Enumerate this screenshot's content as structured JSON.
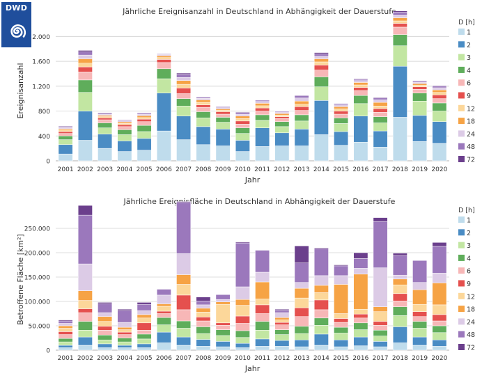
{
  "logo": {
    "text": "DWD",
    "icon": "dwd-spiral-logo"
  },
  "legend": {
    "title": "D [h]",
    "items": [
      "1",
      "2",
      "3",
      "4",
      "6",
      "9",
      "12",
      "18",
      "24",
      "48",
      "72"
    ],
    "colors": [
      "#bfdcec",
      "#4a8cc4",
      "#c2e6a2",
      "#5fad5b",
      "#f7b7b7",
      "#e5504e",
      "#fcd79a",
      "#f6a345",
      "#dccbe6",
      "#9b78bc",
      "#6b3f8c"
    ]
  },
  "chart_data": [
    {
      "type": "bar",
      "stacked": true,
      "title": "Jährliche Ereignisanzahl in Deutschland in Abhängigkeit der Dauerstufe",
      "xlabel": "Jahr",
      "ylabel": "Ereignisanzahl",
      "ylim": [
        0,
        2250
      ],
      "yticks": [
        0,
        400,
        800,
        1200,
        1600,
        2000
      ],
      "ytick_labels": [
        "0",
        "400",
        "800",
        "1.200",
        "1.600",
        "2.000"
      ],
      "grid": true,
      "legend_position": "right",
      "categories": [
        "2001",
        "2002",
        "2003",
        "2004",
        "2005",
        "2006",
        "2007",
        "2008",
        "2009",
        "2010",
        "2011",
        "2012",
        "2013",
        "2014",
        "2015",
        "2016",
        "2017",
        "2018",
        "2019",
        "2020"
      ],
      "series": [
        {
          "name": "1",
          "values": [
            110,
            330,
            200,
            150,
            170,
            480,
            340,
            260,
            240,
            150,
            230,
            240,
            240,
            420,
            250,
            300,
            220,
            700,
            310,
            280
          ]
        },
        {
          "name": "2",
          "values": [
            150,
            470,
            230,
            170,
            190,
            610,
            380,
            290,
            270,
            180,
            300,
            210,
            270,
            550,
            220,
            420,
            260,
            820,
            420,
            350
          ]
        },
        {
          "name": "3",
          "values": [
            80,
            300,
            100,
            100,
            110,
            230,
            160,
            140,
            110,
            110,
            120,
            100,
            130,
            220,
            130,
            200,
            130,
            330,
            230,
            170
          ]
        },
        {
          "name": "4",
          "values": [
            60,
            200,
            80,
            80,
            100,
            160,
            120,
            100,
            80,
            90,
            90,
            80,
            100,
            160,
            90,
            130,
            100,
            180,
            130,
            130
          ]
        },
        {
          "name": "6",
          "values": [
            40,
            130,
            50,
            50,
            60,
            100,
            80,
            70,
            50,
            60,
            60,
            50,
            70,
            110,
            60,
            80,
            70,
            120,
            60,
            70
          ]
        },
        {
          "name": "9",
          "values": [
            30,
            80,
            30,
            30,
            40,
            50,
            90,
            40,
            40,
            50,
            50,
            30,
            60,
            80,
            50,
            50,
            60,
            60,
            40,
            60
          ]
        },
        {
          "name": "12",
          "values": [
            25,
            60,
            20,
            20,
            25,
            30,
            60,
            40,
            25,
            40,
            35,
            25,
            40,
            50,
            35,
            40,
            40,
            40,
            25,
            40
          ]
        },
        {
          "name": "18",
          "values": [
            20,
            70,
            20,
            25,
            30,
            30,
            60,
            40,
            20,
            40,
            40,
            25,
            50,
            50,
            35,
            40,
            60,
            50,
            25,
            40
          ]
        },
        {
          "name": "24",
          "values": [
            20,
            60,
            20,
            20,
            25,
            20,
            50,
            25,
            20,
            30,
            30,
            25,
            50,
            40,
            30,
            30,
            40,
            40,
            25,
            35
          ]
        },
        {
          "name": "48",
          "values": [
            15,
            50,
            15,
            15,
            20,
            10,
            50,
            20,
            15,
            25,
            20,
            15,
            40,
            40,
            20,
            20,
            30,
            50,
            20,
            25
          ]
        },
        {
          "name": "72",
          "values": [
            10,
            25,
            10,
            5,
            5,
            0,
            20,
            5,
            5,
            10,
            5,
            5,
            5,
            20,
            5,
            10,
            10,
            20,
            5,
            10
          ]
        }
      ]
    },
    {
      "type": "bar",
      "stacked": true,
      "title": "Jährliche Ereignisfläche in Deutschland in Abhängigkeit der Dauerstufe",
      "xlabel": "Jahr",
      "ylabel": "Betroffene Fläche [km²]",
      "ylim": [
        0,
        290000
      ],
      "yticks": [
        0,
        50000,
        100000,
        150000,
        200000,
        250000
      ],
      "ytick_labels": [
        "0",
        "50.000",
        "100.000",
        "150.000",
        "200.000",
        "250.000"
      ],
      "grid": true,
      "legend_position": "right",
      "categories": [
        "2001",
        "2002",
        "2003",
        "2004",
        "2005",
        "2006",
        "2007",
        "2008",
        "2009",
        "2010",
        "2011",
        "2012",
        "2013",
        "2014",
        "2015",
        "2016",
        "2017",
        "2018",
        "2019",
        "2020"
      ],
      "series": [
        {
          "name": "1",
          "values": [
            5000,
            10000,
            5000,
            5000,
            5000,
            15000,
            10000,
            8000,
            7000,
            5000,
            8000,
            8000,
            7000,
            10000,
            7000,
            9000,
            7000,
            15000,
            10000,
            8000
          ]
        },
        {
          "name": "2",
          "values": [
            5000,
            17000,
            8000,
            5000,
            8000,
            22000,
            17000,
            14000,
            11000,
            9000,
            15000,
            12000,
            14000,
            23000,
            14000,
            18000,
            11000,
            33000,
            17000,
            13000
          ]
        },
        {
          "name": "3",
          "values": [
            7000,
            14000,
            8000,
            7000,
            10000,
            15000,
            18000,
            12000,
            12000,
            12000,
            18000,
            12000,
            13000,
            18000,
            14000,
            15000,
            11000,
            23000,
            18000,
            15000
          ]
        },
        {
          "name": "4",
          "values": [
            7000,
            18000,
            10000,
            8000,
            10000,
            15000,
            15000,
            14000,
            12000,
            14000,
            18000,
            10000,
            15000,
            15000,
            12000,
            14000,
            12000,
            18000,
            14000,
            14000
          ]
        },
        {
          "name": "6",
          "values": [
            8000,
            18000,
            10000,
            7000,
            8000,
            8000,
            23000,
            12000,
            9000,
            15000,
            16000,
            10000,
            20000,
            17000,
            10000,
            10000,
            10000,
            12000,
            10000,
            10000
          ]
        },
        {
          "name": "9",
          "values": [
            6000,
            8000,
            8000,
            5000,
            15000,
            5000,
            30000,
            8000,
            5000,
            15000,
            18000,
            5000,
            18000,
            20000,
            8000,
            8000,
            8000,
            15000,
            10000,
            13000
          ]
        },
        {
          "name": "12",
          "values": [
            7000,
            17000,
            10000,
            5000,
            10000,
            10000,
            22000,
            10000,
            38000,
            22000,
            12000,
            5000,
            20000,
            15000,
            10000,
            10000,
            20000,
            18000,
            15000,
            20000
          ]
        },
        {
          "name": "18",
          "values": [
            5000,
            20000,
            10000,
            5000,
            7000,
            5000,
            20000,
            8000,
            5000,
            12000,
            35000,
            5000,
            20000,
            15000,
            60000,
            72000,
            10000,
            12000,
            30000,
            45000
          ]
        },
        {
          "name": "24",
          "values": [
            5000,
            55000,
            8000,
            10000,
            8000,
            18000,
            43000,
            7000,
            5000,
            26000,
            20000,
            10000,
            12000,
            20000,
            18000,
            12000,
            80000,
            8000,
            15000,
            20000
          ]
        },
        {
          "name": "48",
          "values": [
            5000,
            100000,
            18000,
            24000,
            13000,
            12000,
            105000,
            8000,
            10000,
            90000,
            45000,
            5000,
            40000,
            55000,
            20000,
            20000,
            95000,
            40000,
            45000,
            55000
          ]
        },
        {
          "name": "72",
          "values": [
            2000,
            20000,
            3000,
            3000,
            4000,
            0,
            2000,
            8000,
            0,
            2000,
            0,
            2000,
            35000,
            2000,
            2000,
            12000,
            8000,
            5000,
            0,
            8000
          ]
        }
      ]
    }
  ]
}
